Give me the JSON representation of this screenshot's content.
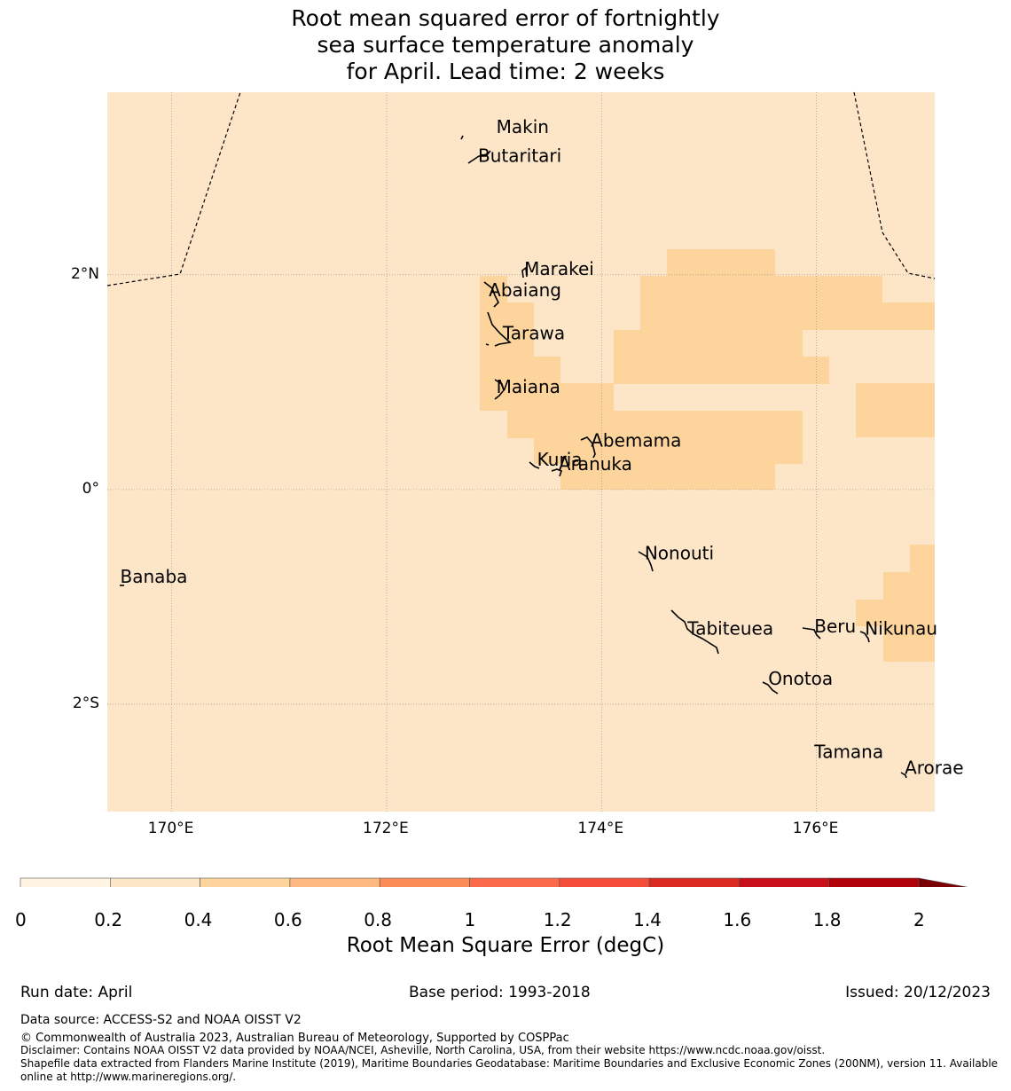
{
  "title_lines": [
    "Root mean squared error of fortnightly",
    "sea surface temperature anomaly",
    "for April. Lead time: 2 weeks"
  ],
  "map": {
    "lon_range": [
      169.4,
      177.1
    ],
    "lat_range": [
      -3.0,
      3.7
    ],
    "lon_ticks": [
      {
        "value": 170,
        "label": "170°E"
      },
      {
        "value": 172,
        "label": "172°E"
      },
      {
        "value": 174,
        "label": "174°E"
      },
      {
        "value": 176,
        "label": "176°E"
      }
    ],
    "lat_ticks": [
      {
        "value": 2,
        "label": "2°N"
      },
      {
        "value": 0,
        "label": "0°"
      },
      {
        "value": -2,
        "label": "2°S"
      }
    ],
    "background_color": "#fde6c8",
    "elevated_color": "#fcd49c",
    "elevated_level": "0.4-0.6",
    "places": [
      {
        "name": "Makin",
        "lon": 173.02,
        "lat": 3.32
      },
      {
        "name": "Butaritari",
        "lon": 172.85,
        "lat": 3.05
      },
      {
        "name": "Marakei",
        "lon": 173.28,
        "lat": 2.0
      },
      {
        "name": "Abaiang",
        "lon": 172.95,
        "lat": 1.8
      },
      {
        "name": "Tarawa",
        "lon": 173.08,
        "lat": 1.4
      },
      {
        "name": "Maiana",
        "lon": 173.02,
        "lat": 0.9
      },
      {
        "name": "Abemama",
        "lon": 173.9,
        "lat": 0.4
      },
      {
        "name": "Kuria",
        "lon": 173.4,
        "lat": 0.22
      },
      {
        "name": "Aranuka",
        "lon": 173.6,
        "lat": 0.18
      },
      {
        "name": "Nonouti",
        "lon": 174.4,
        "lat": -0.65
      },
      {
        "name": "Banaba",
        "lon": 169.52,
        "lat": -0.87
      },
      {
        "name": "Tabiteuea",
        "lon": 174.8,
        "lat": -1.35
      },
      {
        "name": "Beru",
        "lon": 175.98,
        "lat": -1.33
      },
      {
        "name": "Nikunau",
        "lon": 176.45,
        "lat": -1.35
      },
      {
        "name": "Onotoa",
        "lon": 175.55,
        "lat": -1.82
      },
      {
        "name": "Tamana",
        "lon": 175.98,
        "lat": -2.5
      },
      {
        "name": "Arorae",
        "lon": 176.82,
        "lat": -2.65
      }
    ]
  },
  "colorbar": {
    "ticks": [
      "0",
      "0.2",
      "0.4",
      "0.6",
      "0.8",
      "1",
      "1.2",
      "1.4",
      "1.6",
      "1.8",
      "2"
    ],
    "colors": [
      "#fff3e2",
      "#fde6c8",
      "#fcd49c",
      "#fcb880",
      "#fb8c58",
      "#fb6a4a",
      "#f44d39",
      "#d92a20",
      "#c8101a",
      "#b00008"
    ],
    "extend_color": "#7a0006",
    "label": "Root Mean Square Error (degC)"
  },
  "footer": {
    "run_date": "Run date: April",
    "base_period": "Base period: 1993-2018",
    "issued": "Issued: 20/12/2023",
    "data_source": "Data source: ACCESS-S2 and NOAA OISST V2",
    "copyright": "© Commonwealth of Australia 2023, Australian Bureau of Meteorology, Supported by COSPPac",
    "disclaimer": "Disclaimer: Contains NOAA OISST V2 data provided by NOAA/NCEI, Asheville, North Carolina, USA, from their website https://www.ncdc.noaa.gov/oisst.",
    "shapefile_1": "Shapefile data extracted from Flanders Marine Institute (2019), Maritime Boundaries Geodatabase: Maritime Boundaries and Exclusive Economic Zones (200NM), version 11. Available",
    "shapefile_2": "online at http://www.marineregions.org/."
  }
}
